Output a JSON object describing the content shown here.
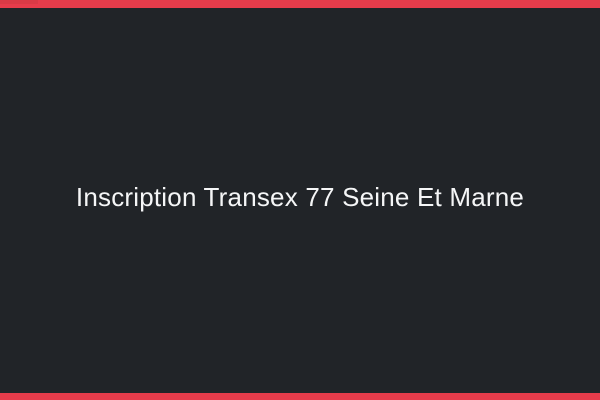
{
  "page": {
    "title": "Inscription Transex 77 Seine Et Marne"
  },
  "theme": {
    "background": "#212428",
    "accent": "#e63c4b",
    "accent_dark": "#cf3844",
    "title_color": "#f5f6f7"
  }
}
